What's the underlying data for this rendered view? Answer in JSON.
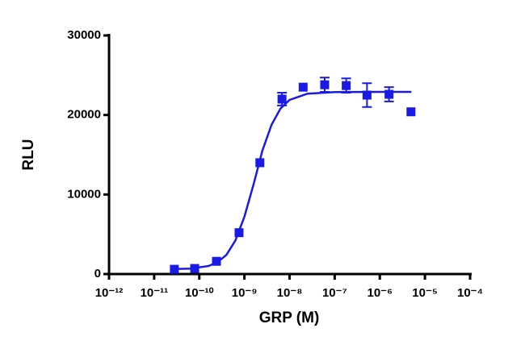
{
  "chart_data": {
    "type": "scatter",
    "xlabel": "GRP (M)",
    "ylabel": "RLU",
    "xscale": "log",
    "xlim": [
      1e-12,
      0.0001
    ],
    "xticks": [
      {
        "value": 1e-12,
        "label": "10⁻¹²"
      },
      {
        "value": 1e-11,
        "label": "10⁻¹¹"
      },
      {
        "value": 1e-10,
        "label": "10⁻¹⁰"
      },
      {
        "value": 1e-09,
        "label": "10⁻⁹"
      },
      {
        "value": 1e-08,
        "label": "10⁻⁸"
      },
      {
        "value": 1e-07,
        "label": "10⁻⁷"
      },
      {
        "value": 1e-06,
        "label": "10⁻⁶"
      },
      {
        "value": 1e-05,
        "label": "10⁻⁵"
      },
      {
        "value": 0.0001,
        "label": "10⁻⁴"
      }
    ],
    "ylim": [
      0,
      30000
    ],
    "yticks": [
      0,
      10000,
      20000,
      30000
    ],
    "series": [
      {
        "name": "data",
        "color": "#1a1ae6",
        "x": [
          2.8e-11,
          7.9e-11,
          2.4e-10,
          7.6e-10,
          2.2e-09,
          6.8e-09,
          2e-08,
          6e-08,
          1.8e-07,
          5.2e-07,
          1.6e-06,
          4.9e-06
        ],
        "values": [
          600,
          700,
          1600,
          5200,
          14000,
          22000,
          23500,
          23800,
          23700,
          22500,
          22600,
          20400
        ],
        "errors": [
          null,
          null,
          null,
          null,
          null,
          800,
          null,
          900,
          900,
          1500,
          900,
          null
        ]
      },
      {
        "name": "fit",
        "color": "#1a1ae6",
        "x": [
          2.5e-11,
          6.3e-11,
          1.6e-10,
          2.5e-10,
          4e-10,
          6.3e-10,
          1e-09,
          1.6e-09,
          2.5e-09,
          4e-09,
          6.3e-09,
          1e-08,
          2.5e-08,
          1e-07,
          1e-06,
          5e-06
        ],
        "values": [
          620,
          685,
          1005,
          1465,
          2410,
          4210,
          7220,
          11310,
          15520,
          18790,
          20810,
          21900,
          22680,
          22880,
          22900,
          22900
        ]
      }
    ]
  }
}
